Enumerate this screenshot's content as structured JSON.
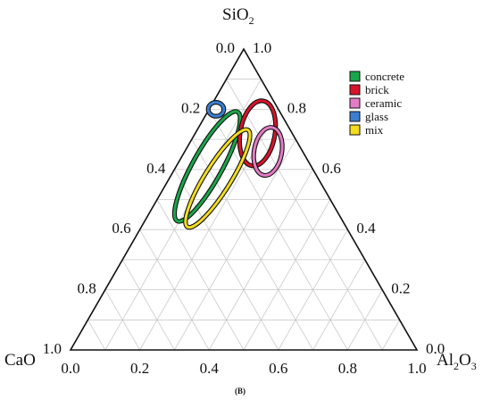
{
  "chart_data": {
    "type": "ternary",
    "vertices": {
      "top": {
        "base": "SiO",
        "sub": "2"
      },
      "left": {
        "base": "CaO",
        "sub": ""
      },
      "right": {
        "base": "Al",
        "sub": "2",
        "tail": "O",
        "sub2": "3"
      }
    },
    "ticks": [
      "0.0",
      "0.2",
      "0.4",
      "0.6",
      "0.8",
      "1.0"
    ],
    "ticks_values": [
      0,
      0.2,
      0.4,
      0.6,
      0.8,
      1.0
    ],
    "grid": true,
    "grid_step": 0.1,
    "legend_position": "top-right",
    "panel_label": "(B)",
    "series": [
      {
        "name": "concrete",
        "color": "#1aa64a",
        "center": {
          "SiO2": 0.61,
          "CaO": 0.3,
          "Al2O3": 0.09
        },
        "semi_axes": [
          0.36,
          0.085
        ],
        "angle_deg": 61
      },
      {
        "name": "brick",
        "color": "#d7142b",
        "center": {
          "SiO2": 0.72,
          "CaO": 0.1,
          "Al2O3": 0.18
        },
        "semi_axes": [
          0.19,
          0.1
        ],
        "angle_deg": 80
      },
      {
        "name": "ceramic",
        "color": "#e57bc6",
        "center": {
          "SiO2": 0.66,
          "CaO": 0.1,
          "Al2O3": 0.24
        },
        "semi_axes": [
          0.14,
          0.08
        ],
        "angle_deg": 80
      },
      {
        "name": "glass",
        "color": "#3b7fd1",
        "center": {
          "SiO2": 0.8,
          "CaO": 0.18,
          "Al2O3": 0.02
        },
        "semi_axes": [
          0.045,
          0.04
        ],
        "angle_deg": 0
      },
      {
        "name": "mix",
        "color": "#f2dc1c",
        "center": {
          "SiO2": 0.57,
          "CaO": 0.29,
          "Al2O3": 0.14
        },
        "semi_axes": [
          0.33,
          0.075
        ],
        "angle_deg": 58
      }
    ]
  }
}
